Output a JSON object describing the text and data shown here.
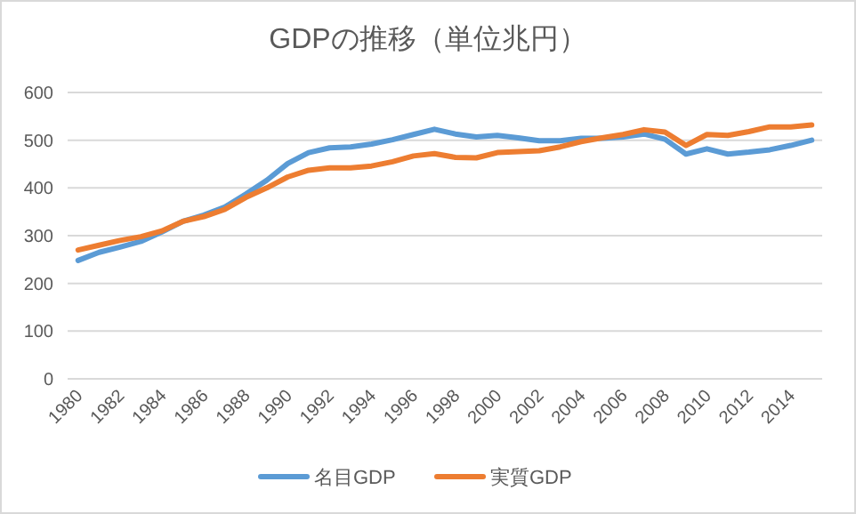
{
  "chart_data": {
    "type": "line",
    "title": "GDPの推移（単位兆円）",
    "categories": [
      "1980",
      null,
      "1982",
      null,
      "1984",
      null,
      "1986",
      null,
      "1988",
      null,
      "1990",
      null,
      "1992",
      null,
      "1994",
      null,
      "1996",
      null,
      "1998",
      null,
      "2000",
      null,
      "2002",
      null,
      "2004",
      null,
      "2006",
      null,
      "2008",
      null,
      "2010",
      null,
      "2012",
      null,
      "2014",
      null
    ],
    "series": [
      {
        "name": "名目GDP",
        "color": "#5b9bd5",
        "values": [
          248,
          265,
          276,
          288,
          308,
          330,
          343,
          360,
          387,
          416,
          451,
          474,
          484,
          486,
          492,
          501,
          512,
          523,
          513,
          507,
          510,
          505,
          499,
          499,
          504,
          504,
          507,
          513,
          502,
          471,
          482,
          471,
          475,
          480,
          489,
          500
        ]
      },
      {
        "name": "実質GDP",
        "color": "#ed7d31",
        "values": [
          270,
          280,
          290,
          298,
          310,
          330,
          340,
          355,
          380,
          400,
          423,
          437,
          442,
          442,
          446,
          455,
          467,
          472,
          464,
          463,
          474,
          476,
          478,
          486,
          497,
          505,
          512,
          522,
          517,
          489,
          512,
          510,
          518,
          528,
          528,
          532
        ]
      }
    ],
    "ylim": [
      0,
      600
    ],
    "yticks": [
      0,
      100,
      200,
      300,
      400,
      500,
      600
    ],
    "grid": "y",
    "legend": "bottom"
  }
}
